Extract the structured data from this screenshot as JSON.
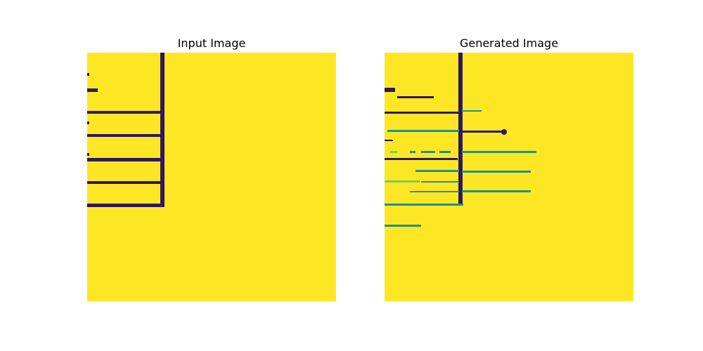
{
  "panels": [
    {
      "title": "Input Image"
    },
    {
      "title": "Generated Image"
    }
  ],
  "colors": {
    "background": "#fde725",
    "line": "#2d1a5c",
    "line_accent": "#21918c",
    "line_highlight": "#7ad151"
  }
}
